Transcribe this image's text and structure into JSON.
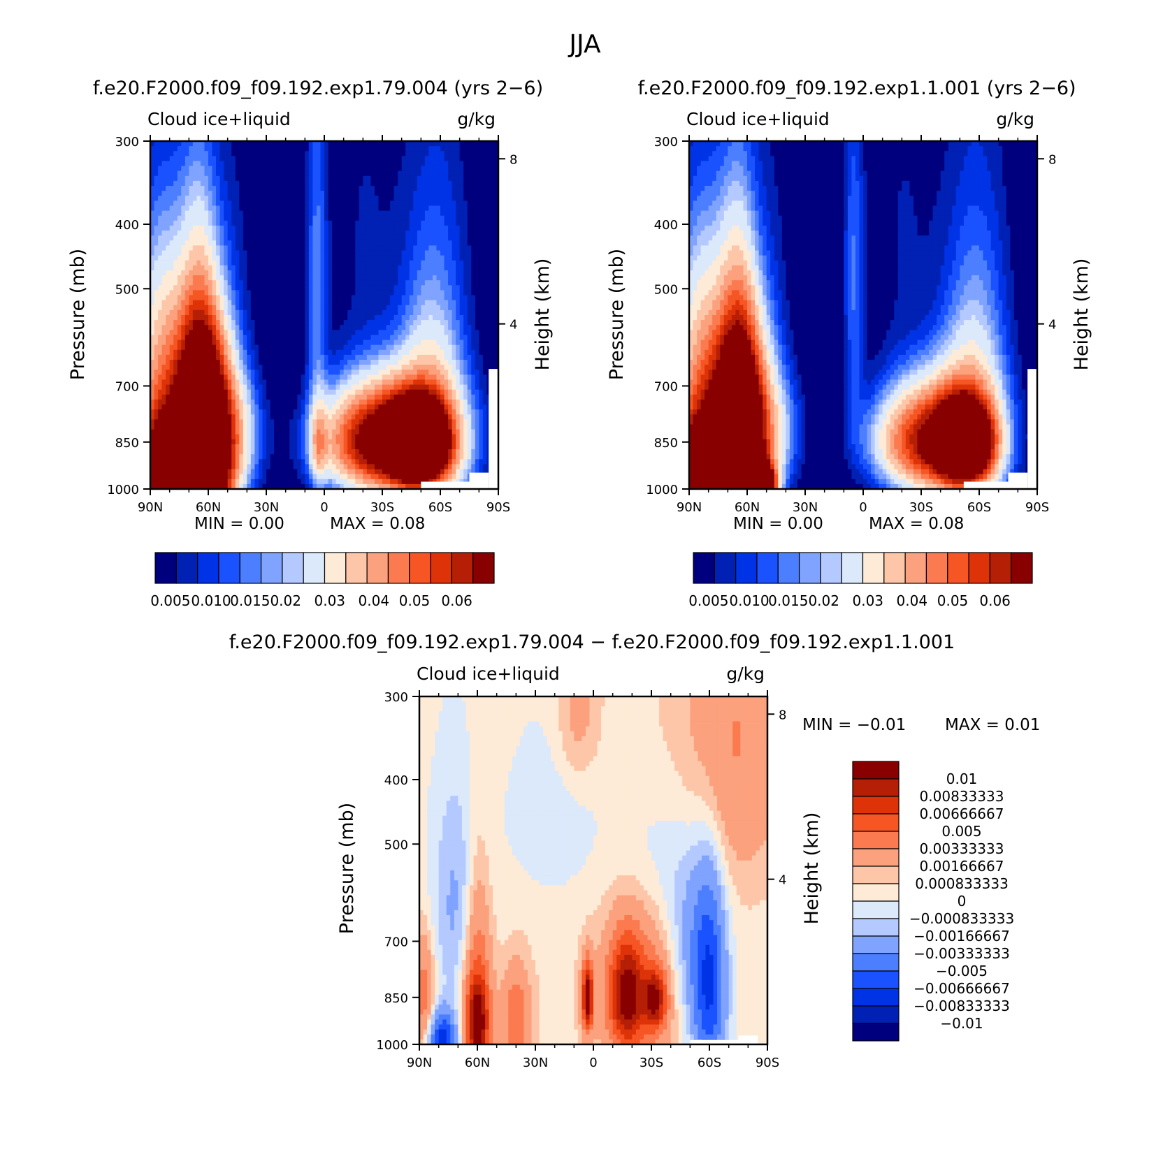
{
  "figure": {
    "title": "JJA"
  },
  "colors": {
    "frame": "#000000",
    "missing": "#ffffff"
  },
  "chart_data": [
    {
      "type": "heatmap",
      "id": "panel1",
      "title": "f.e20.F2000.f09_f09.192.exp1.79.004 (yrs 2−6)",
      "left_string": "Cloud ice+liquid",
      "right_string": "g/kg",
      "xlabel": "",
      "ylabel": "Pressure (mb)",
      "ylabel_right": "Height (km)",
      "x_ticks": [
        "90N",
        "60N",
        "30N",
        "0",
        "30S",
        "60S",
        "90S"
      ],
      "x_range": [
        90,
        -90
      ],
      "y_ticks": [
        "300",
        "400",
        "500",
        "700",
        "850",
        "1000"
      ],
      "y_tick_values": [
        300,
        400,
        500,
        700,
        850,
        1000
      ],
      "y_range": [
        300,
        1000
      ],
      "y_right_ticks": [
        "8",
        "4"
      ],
      "y_right_values": [
        8,
        4
      ],
      "min_text": "MIN = 0.00",
      "max_text": "MAX = 0.08",
      "colorbar": {
        "orientation": "horizontal",
        "levels": [
          "0.005",
          "0.010",
          "0.015",
          "0.02",
          "0.03",
          "0.04",
          "0.05",
          "0.06"
        ],
        "colors": [
          "#00007f",
          "#0021b3",
          "#0032e6",
          "#1a52ff",
          "#4c7fff",
          "#7fa3ff",
          "#b3c9ff",
          "#dbe9fb",
          "#fdebd7",
          "#fdc6a8",
          "#fca17d",
          "#fb7a4f",
          "#f65524",
          "#de3208",
          "#b51f06",
          "#880000"
        ]
      },
      "features": [
        {
          "lat": 78,
          "p": 985,
          "v": 0.08,
          "wx": 16,
          "wp": 130
        },
        {
          "lat": 62,
          "p": 900,
          "v": 0.06,
          "wx": 10,
          "wp": 170
        },
        {
          "lat": 62,
          "p": 740,
          "v": 0.045,
          "wx": 9,
          "wp": 150
        },
        {
          "lat": 82,
          "p": 800,
          "v": 0.03,
          "wx": 14,
          "wp": 260
        },
        {
          "lat": 64,
          "p": 580,
          "v": 0.018,
          "wx": 7,
          "wp": 170
        },
        {
          "lat": 83,
          "p": 620,
          "v": 0.012,
          "wx": 11,
          "wp": 200
        },
        {
          "lat": 45,
          "p": 820,
          "v": 0.017,
          "wx": 10,
          "wp": 120
        },
        {
          "lat": 48,
          "p": 540,
          "v": 0.006,
          "wx": 9,
          "wp": 260
        },
        {
          "lat": 4,
          "p": 480,
          "v": 0.013,
          "wx": 4,
          "wp": 220
        },
        {
          "lat": 3,
          "p": 860,
          "v": 0.018,
          "wx": 3,
          "wp": 90
        },
        {
          "lat": -48,
          "p": 852,
          "v": 0.075,
          "wx": 10,
          "wp": 75
        },
        {
          "lat": -38,
          "p": 845,
          "v": 0.055,
          "wx": 22,
          "wp": 120
        },
        {
          "lat": -20,
          "p": 850,
          "v": 0.025,
          "wx": 18,
          "wp": 100
        },
        {
          "lat": -55,
          "p": 790,
          "v": 0.02,
          "wx": 12,
          "wp": 240
        },
        {
          "lat": -60,
          "p": 500,
          "v": 0.006,
          "wx": 14,
          "wp": 320
        },
        {
          "lat": -20,
          "p": 400,
          "v": 0.005,
          "wx": 14,
          "wp": 240
        },
        {
          "lat": 65,
          "p": 350,
          "v": 0.004,
          "wx": 7,
          "wp": 180
        }
      ],
      "missing_regions": [
        {
          "lat_from": -50,
          "lat_to": -77,
          "p_from": 975,
          "p_to": 1000
        },
        {
          "lat_from": -75,
          "lat_to": -85,
          "p_from": 945,
          "p_to": 1000
        },
        {
          "lat_from": -85,
          "lat_to": -90,
          "p_from": 660,
          "p_to": 1000
        }
      ]
    },
    {
      "type": "heatmap",
      "id": "panel2",
      "title": "f.e20.F2000.f09_f09.192.exp1.1.001 (yrs 2−6)",
      "left_string": "Cloud ice+liquid",
      "right_string": "g/kg",
      "xlabel": "",
      "ylabel": "Pressure (mb)",
      "ylabel_right": "Height (km)",
      "x_ticks": [
        "90N",
        "60N",
        "30N",
        "0",
        "30S",
        "60S",
        "90S"
      ],
      "x_range": [
        90,
        -90
      ],
      "y_ticks": [
        "300",
        "400",
        "500",
        "700",
        "850",
        "1000"
      ],
      "y_tick_values": [
        300,
        400,
        500,
        700,
        850,
        1000
      ],
      "y_range": [
        300,
        1000
      ],
      "y_right_ticks": [
        "8",
        "4"
      ],
      "y_right_values": [
        8,
        4
      ],
      "min_text": "MIN = 0.00",
      "max_text": "MAX = 0.08",
      "colorbar": {
        "orientation": "horizontal",
        "levels": [
          "0.005",
          "0.010",
          "0.015",
          "0.02",
          "0.03",
          "0.04",
          "0.05",
          "0.06"
        ],
        "colors": [
          "#00007f",
          "#0021b3",
          "#0032e6",
          "#1a52ff",
          "#4c7fff",
          "#7fa3ff",
          "#b3c9ff",
          "#dbe9fb",
          "#fdebd7",
          "#fdc6a8",
          "#fca17d",
          "#fb7a4f",
          "#f65524",
          "#de3208",
          "#b51f06",
          "#880000"
        ]
      },
      "features": [
        {
          "lat": 80,
          "p": 985,
          "v": 0.08,
          "wx": 14,
          "wp": 130
        },
        {
          "lat": 64,
          "p": 900,
          "v": 0.055,
          "wx": 10,
          "wp": 170
        },
        {
          "lat": 63,
          "p": 740,
          "v": 0.04,
          "wx": 9,
          "wp": 150
        },
        {
          "lat": 82,
          "p": 800,
          "v": 0.03,
          "wx": 14,
          "wp": 260
        },
        {
          "lat": 64,
          "p": 580,
          "v": 0.018,
          "wx": 7,
          "wp": 170
        },
        {
          "lat": 83,
          "p": 620,
          "v": 0.012,
          "wx": 11,
          "wp": 200
        },
        {
          "lat": 50,
          "p": 990,
          "v": 0.06,
          "wx": 4,
          "wp": 50
        },
        {
          "lat": 45,
          "p": 820,
          "v": 0.015,
          "wx": 10,
          "wp": 120
        },
        {
          "lat": 48,
          "p": 540,
          "v": 0.006,
          "wx": 9,
          "wp": 260
        },
        {
          "lat": 5,
          "p": 480,
          "v": 0.012,
          "wx": 4,
          "wp": 220
        },
        {
          "lat": -53,
          "p": 850,
          "v": 0.07,
          "wx": 9,
          "wp": 75
        },
        {
          "lat": -42,
          "p": 845,
          "v": 0.05,
          "wx": 18,
          "wp": 120
        },
        {
          "lat": -22,
          "p": 850,
          "v": 0.022,
          "wx": 16,
          "wp": 100
        },
        {
          "lat": -57,
          "p": 790,
          "v": 0.02,
          "wx": 12,
          "wp": 240
        },
        {
          "lat": -60,
          "p": 500,
          "v": 0.006,
          "wx": 14,
          "wp": 320
        },
        {
          "lat": -20,
          "p": 400,
          "v": 0.005,
          "wx": 14,
          "wp": 240
        },
        {
          "lat": 65,
          "p": 350,
          "v": 0.004,
          "wx": 7,
          "wp": 180
        }
      ],
      "missing_regions": [
        {
          "lat_from": -52,
          "lat_to": -77,
          "p_from": 975,
          "p_to": 1000
        },
        {
          "lat_from": -75,
          "lat_to": -85,
          "p_from": 945,
          "p_to": 1000
        },
        {
          "lat_from": -85,
          "lat_to": -90,
          "p_from": 660,
          "p_to": 1000
        }
      ]
    },
    {
      "type": "heatmap",
      "id": "panel3",
      "title": "f.e20.F2000.f09_f09.192.exp1.79.004 − f.e20.F2000.f09_f09.192.exp1.1.001",
      "left_string": "Cloud ice+liquid",
      "right_string": "g/kg",
      "xlabel": "",
      "ylabel": "Pressure (mb)",
      "ylabel_right": "Height (km)",
      "x_ticks": [
        "90N",
        "60N",
        "30N",
        "0",
        "30S",
        "60S",
        "90S"
      ],
      "x_range": [
        90,
        -90
      ],
      "y_ticks": [
        "300",
        "400",
        "500",
        "700",
        "850",
        "1000"
      ],
      "y_tick_values": [
        300,
        400,
        500,
        700,
        850,
        1000
      ],
      "y_range": [
        300,
        1000
      ],
      "y_right_ticks": [
        "8",
        "4"
      ],
      "y_right_values": [
        8,
        4
      ],
      "min_text": "MIN = −0.01",
      "max_text": "MAX = 0.01",
      "colorbar": {
        "orientation": "vertical",
        "levels": [
          "0.01",
          "0.00833333",
          "0.00666667",
          "0.005",
          "0.00333333",
          "0.00166667",
          "0.000833333",
          "0",
          "−0.000833333",
          "−0.00166667",
          "−0.00333333",
          "−0.005",
          "−0.00666667",
          "−0.00833333",
          "−0.01"
        ],
        "colors": [
          "#880000",
          "#b51f06",
          "#de3208",
          "#f65524",
          "#fb7a4f",
          "#fca17d",
          "#fdc6a8",
          "#fdebd7",
          "#dbe9fb",
          "#b3c9ff",
          "#7fa3ff",
          "#4c7fff",
          "#1a52ff",
          "#0032e6",
          "#0021b3",
          "#00007f"
        ]
      },
      "features": [
        {
          "lat": 0,
          "p": 650,
          "v": 0.0007,
          "wx": 90,
          "wp": 600
        },
        {
          "lat": 60,
          "p": 840,
          "v": 0.0055,
          "wx": 5,
          "wp": 220
        },
        {
          "lat": 60,
          "p": 930,
          "v": 0.0075,
          "wx": 4,
          "wp": 90
        },
        {
          "lat": 40,
          "p": 920,
          "v": 0.0045,
          "wx": 5,
          "wp": 110
        },
        {
          "lat": 88,
          "p": 840,
          "v": 0.004,
          "wx": 4,
          "wp": 120
        },
        {
          "lat": 3,
          "p": 850,
          "v": 0.011,
          "wx": 2,
          "wp": 70
        },
        {
          "lat": -17,
          "p": 840,
          "v": 0.008,
          "wx": 6,
          "wp": 110
        },
        {
          "lat": -32,
          "p": 855,
          "v": 0.0075,
          "wx": 4,
          "wp": 60
        },
        {
          "lat": -25,
          "p": 850,
          "v": 0.004,
          "wx": 14,
          "wp": 160
        },
        {
          "lat": -72,
          "p": 350,
          "v": 0.003,
          "wx": 20,
          "wp": 140
        },
        {
          "lat": 8,
          "p": 320,
          "v": 0.002,
          "wx": 8,
          "wp": 60
        },
        {
          "lat": 70,
          "p": 620,
          "v": -0.0025,
          "wx": 10,
          "wp": 180
        },
        {
          "lat": 78,
          "p": 990,
          "v": -0.008,
          "wx": 5,
          "wp": 70
        },
        {
          "lat": -60,
          "p": 820,
          "v": -0.0065,
          "wx": 6,
          "wp": 200
        },
        {
          "lat": -50,
          "p": 720,
          "v": -0.0028,
          "wx": 10,
          "wp": 190
        },
        {
          "lat": 20,
          "p": 450,
          "v": -0.0012,
          "wx": 20,
          "wp": 120
        },
        {
          "lat": -30,
          "p": 520,
          "v": -0.001,
          "wx": 14,
          "wp": 100
        }
      ],
      "missing_regions": [
        {
          "lat_from": -50,
          "lat_to": -76,
          "p_from": 985,
          "p_to": 1000
        },
        {
          "lat_from": -75,
          "lat_to": -85,
          "p_from": 970,
          "p_to": 1000
        }
      ]
    }
  ]
}
